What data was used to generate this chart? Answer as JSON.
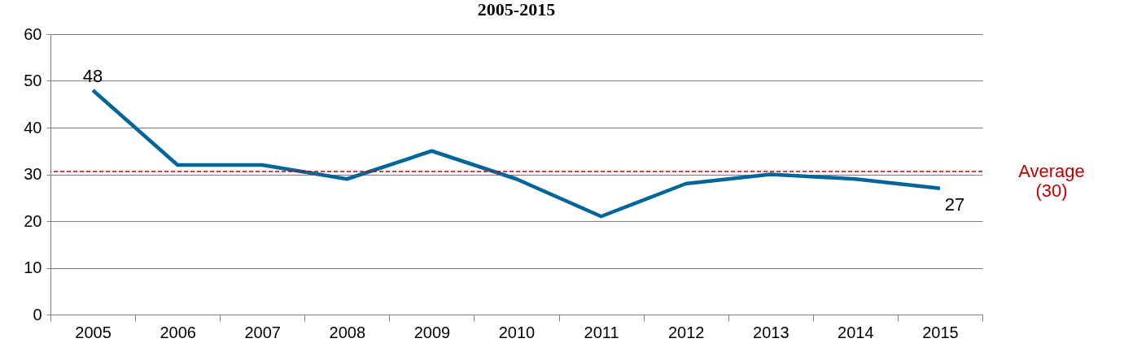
{
  "chart_data": {
    "type": "line",
    "title": "2005-2015",
    "categories": [
      "2005",
      "2006",
      "2007",
      "2008",
      "2009",
      "2010",
      "2011",
      "2012",
      "2013",
      "2014",
      "2015"
    ],
    "series": [
      {
        "color": "#006699",
        "values": [
          48,
          32,
          32,
          29,
          35,
          29,
          21,
          28,
          30,
          29,
          27
        ],
        "value_labels": [
          "48",
          null,
          null,
          null,
          null,
          null,
          null,
          null,
          null,
          null,
          "27"
        ]
      }
    ],
    "ylim": [
      0,
      60
    ],
    "yticks": [
      0,
      10,
      20,
      30,
      40,
      50,
      60
    ],
    "grid": "y",
    "marker": "none",
    "line_style": "solid",
    "ref_lines": [
      {
        "axis": "y",
        "value": 30.6,
        "label": "Average\n(30)",
        "color": "#c00000",
        "line_style": "dashed"
      }
    ]
  }
}
